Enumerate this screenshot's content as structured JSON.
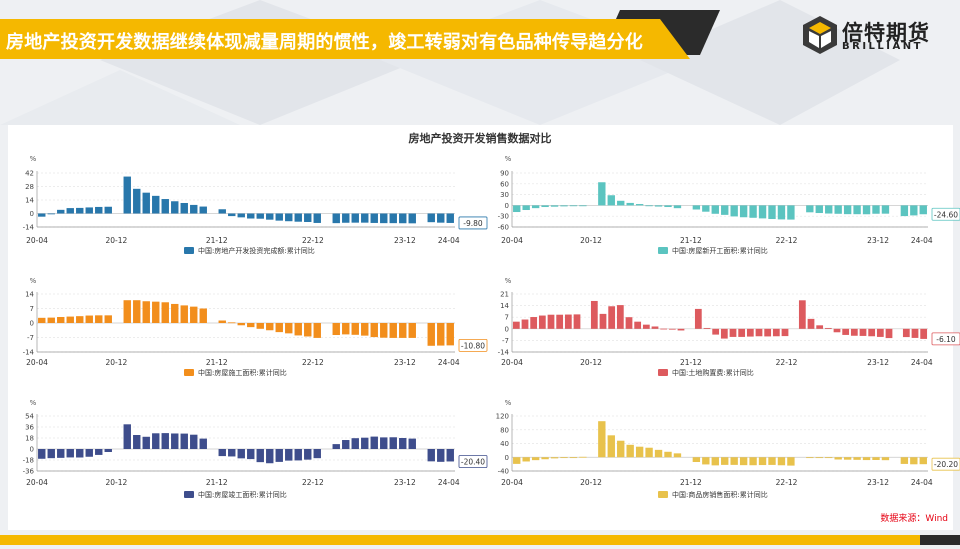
{
  "page": {
    "title": "房地产投资开发数据继续体现减量周期的惯性，竣工转弱对有色品种传导趋分化",
    "logo_cn": "倍特期货",
    "logo_en": "BRILLIANT",
    "chart_title": "房地产投资开发销售数据对比",
    "source": "数据来源：Wind",
    "colors": {
      "accent": "#f5b800",
      "dark": "#2b2b2b"
    }
  },
  "chart_data": [
    {
      "type": "bar",
      "unit": "%",
      "legend": "中国:房地产开发投资完成额:累计同比",
      "color": "#2877ab",
      "yticks": [
        "42",
        "28",
        "14",
        "0",
        "-14"
      ],
      "ylim": [
        -14,
        42
      ],
      "xticks": [
        "20-04",
        "20-12",
        "21-12",
        "22-12",
        "23-12",
        "24-04"
      ],
      "label": "-9.80",
      "values": [
        -3.3,
        -0.3,
        3.8,
        5.6,
        5.8,
        6.3,
        6.8,
        7.0,
        null,
        38.3,
        25.6,
        21.6,
        18.3,
        15.0,
        12.7,
        10.9,
        8.9,
        7.2,
        null,
        4.4,
        -2.7,
        -4.0,
        -5.2,
        -5.4,
        -6.4,
        -7.4,
        -8.0,
        -8.5,
        -8.8,
        -9.8,
        null,
        -10.0,
        -9.6,
        -9.5,
        -9.5,
        -9.8,
        -10.0,
        -10.0,
        -10.1,
        -10.2,
        null,
        -9.0,
        -9.5,
        -9.8
      ]
    },
    {
      "type": "bar",
      "unit": "%",
      "legend": "中国:房屋新开工面积:累计同比",
      "color": "#5bc4c0",
      "yticks": [
        "90",
        "60",
        "30",
        "0",
        "-30",
        "-60"
      ],
      "ylim": [
        -60,
        90
      ],
      "xticks": [
        "20-04",
        "20-12",
        "21-12",
        "22-12",
        "23-12",
        "24-04"
      ],
      "label": "-24.60",
      "values": [
        -18.4,
        -12.8,
        -7.6,
        -4.5,
        -3.6,
        -2.7,
        -2.0,
        -1.2,
        null,
        64.3,
        28.2,
        12.8,
        6.9,
        3.8,
        -0.9,
        -3.2,
        -4.5,
        -7.7,
        null,
        -11.4,
        -17.5,
        -23.3,
        -26.3,
        -30.6,
        -32.9,
        -34.4,
        -36.1,
        -37.8,
        -38.9,
        -39.4,
        null,
        -19.2,
        -21.2,
        -22.6,
        -23.3,
        -24.3,
        -24.4,
        -24.6,
        -23.2,
        -23.0,
        null,
        -29.7,
        -27.8,
        -24.6
      ]
    },
    {
      "type": "bar",
      "unit": "%",
      "legend": "中国:房屋施工面积:累计同比",
      "color": "#f28e1c",
      "yticks": [
        "14",
        "7",
        "0",
        "-7",
        "-14"
      ],
      "ylim": [
        -14,
        14
      ],
      "xticks": [
        "20-04",
        "20-12",
        "21-12",
        "22-12",
        "23-12",
        "24-04"
      ],
      "label": "-10.80",
      "values": [
        2.5,
        2.6,
        2.9,
        3.1,
        3.3,
        3.6,
        3.7,
        3.7,
        null,
        11.0,
        11.0,
        10.5,
        10.3,
        10.0,
        9.2,
        8.5,
        7.9,
        7.0,
        null,
        1.2,
        0.3,
        -1.1,
        -2.0,
        -2.8,
        -3.5,
        -4.4,
        -5.0,
        -6.0,
        -6.5,
        -7.2,
        null,
        -5.8,
        -5.5,
        -5.7,
        -6.1,
        -6.8,
        -7.1,
        -7.2,
        -7.2,
        -7.2,
        null,
        -11.0,
        -10.9,
        -10.8
      ]
    },
    {
      "type": "bar",
      "unit": "%",
      "legend": "中国:土地购置费:累计同比",
      "color": "#dd5a5e",
      "yticks": [
        "21",
        "14",
        "7",
        "0",
        "-7",
        "-14"
      ],
      "ylim": [
        -14,
        21
      ],
      "xticks": [
        "20-04",
        "20-12",
        "21-12",
        "22-12",
        "23-12",
        "24-04"
      ],
      "label": "-6.10",
      "values": [
        4.3,
        5.6,
        7.1,
        8.0,
        8.5,
        8.5,
        8.6,
        8.7,
        null,
        16.8,
        9.0,
        13.6,
        14.3,
        7.0,
        4.3,
        2.5,
        1.4,
        0.1,
        -0.4,
        -1.0,
        null,
        12.0,
        0.5,
        -3.5,
        -5.9,
        -4.9,
        -4.9,
        -4.7,
        -4.5,
        -4.6,
        -4.5,
        -4.4,
        null,
        17.2,
        6.0,
        2.1,
        0.5,
        -2.1,
        -3.7,
        -4.2,
        -4.3,
        -4.5,
        -4.9,
        -5.6,
        null,
        -5.0,
        -5.5,
        -6.1
      ]
    },
    {
      "type": "bar",
      "unit": "%",
      "legend": "中国:房屋竣工面积:累计同比",
      "color": "#3e4d8c",
      "yticks": [
        "54",
        "36",
        "18",
        "0",
        "-18",
        "-36"
      ],
      "ylim": [
        -36,
        54
      ],
      "xticks": [
        "20-04",
        "20-12",
        "21-12",
        "22-12",
        "23-12",
        "24-04"
      ],
      "label": "-20.40",
      "values": [
        -16.0,
        -15.0,
        -14.5,
        -13.8,
        -13.9,
        -12.7,
        -9.7,
        -4.9,
        null,
        40.4,
        22.9,
        20.0,
        25.7,
        26.0,
        25.4,
        25.2,
        23.4,
        17.0,
        null,
        -11.6,
        -12.2,
        -15.3,
        -16.5,
        -21.5,
        -23.3,
        -21.1,
        -19.0,
        -18.7,
        -17.4,
        -15.0,
        null,
        8.0,
        14.7,
        17.7,
        18.5,
        20.3,
        19.0,
        19.2,
        18.0,
        17.0,
        null,
        -20.2,
        -21.0,
        -20.4
      ]
    },
    {
      "type": "bar",
      "unit": "%",
      "legend": "中国:商品房销售面积:累计同比",
      "color": "#e8c24c",
      "yticks": [
        "120",
        "80",
        "40",
        "0",
        "-40"
      ],
      "ylim": [
        -40,
        120
      ],
      "xticks": [
        "20-04",
        "20-12",
        "21-12",
        "22-12",
        "23-12",
        "24-04"
      ],
      "label": "-20.20",
      "values": [
        -19.3,
        -12.3,
        -8.4,
        -5.8,
        -3.3,
        -1.8,
        -0.4,
        1.2,
        null,
        104.9,
        63.8,
        48.1,
        36.2,
        30.7,
        27.7,
        21.5,
        15.9,
        11.3,
        null,
        -13.8,
        -20.9,
        -23.6,
        -22.2,
        -22.2,
        -23.0,
        -23.2,
        -22.7,
        -22.3,
        -23.3,
        -24.3,
        null,
        -1.8,
        -0.4,
        -2.3,
        -6.5,
        -7.1,
        -7.5,
        -8.2,
        -8.0,
        -8.5,
        null,
        -19.4,
        -20.5,
        -20.2
      ]
    }
  ]
}
